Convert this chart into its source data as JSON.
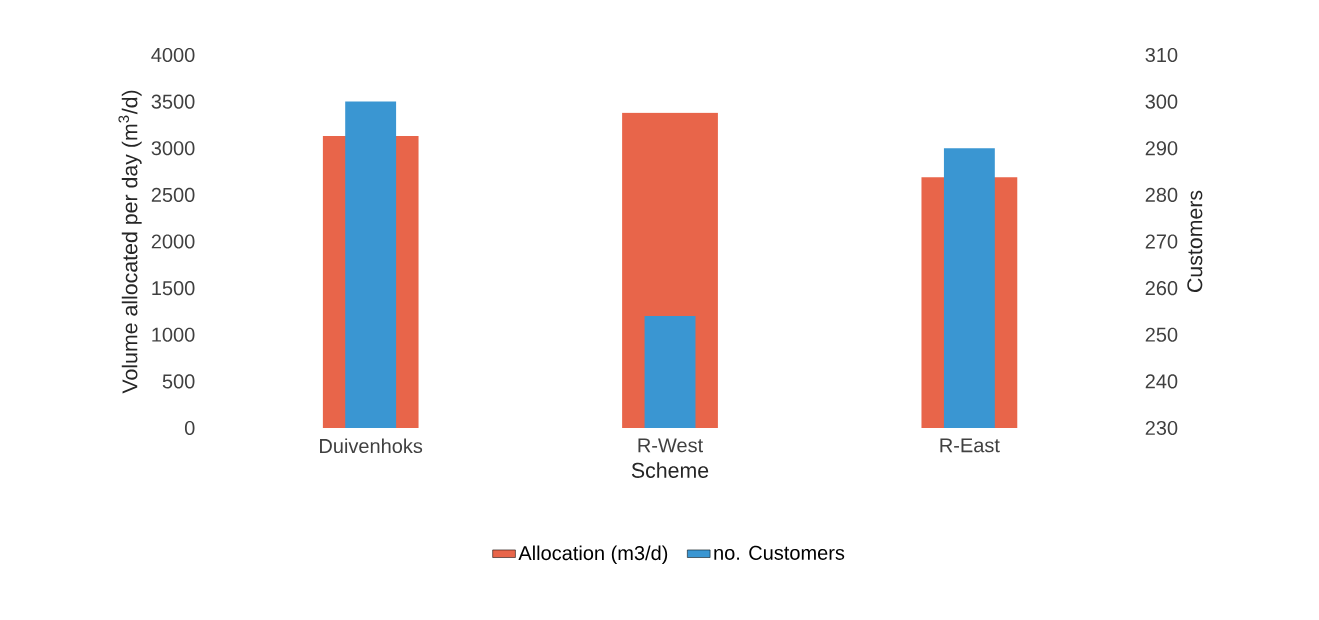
{
  "chart_data": {
    "type": "bar",
    "xlabel": "Scheme",
    "ylabel": "Volume allocated per day (m$^{3}$/d)",
    "y2label": "Customers",
    "categories": [
      "Duivenhoks",
      "R-West",
      "R-East"
    ],
    "series": [
      {
        "name": "Allocation (m3/d)",
        "color": "#e8654a",
        "values": [
          3130,
          3380,
          2690
        ]
      },
      {
        "name": "no. Customers",
        "color": "#3a96d2",
        "values": [
          300,
          254,
          290
        ],
        "axis": "y2"
      }
    ],
    "ylim": [
      0,
      4000
    ],
    "yticks": [
      0,
      500,
      1000,
      1500,
      2000,
      2500,
      3000,
      3500,
      4000
    ],
    "y2lim": [
      230,
      310
    ],
    "y2ticks": [
      230,
      240,
      250,
      260,
      270,
      280,
      290,
      300,
      310
    ],
    "legend": "bottom"
  }
}
